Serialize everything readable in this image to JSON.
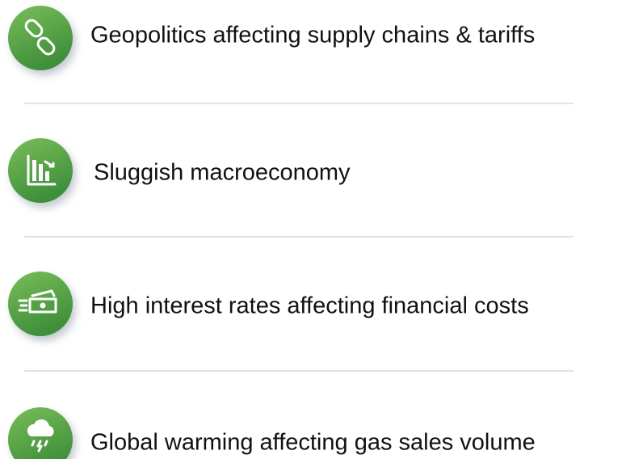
{
  "items": [
    {
      "label": "Geopolitics affecting supply chains & tariffs"
    },
    {
      "label": "Sluggish macroeconomy"
    },
    {
      "label": "High interest rates affecting financial costs"
    },
    {
      "label": "Global warming affecting gas sales volume"
    }
  ]
}
